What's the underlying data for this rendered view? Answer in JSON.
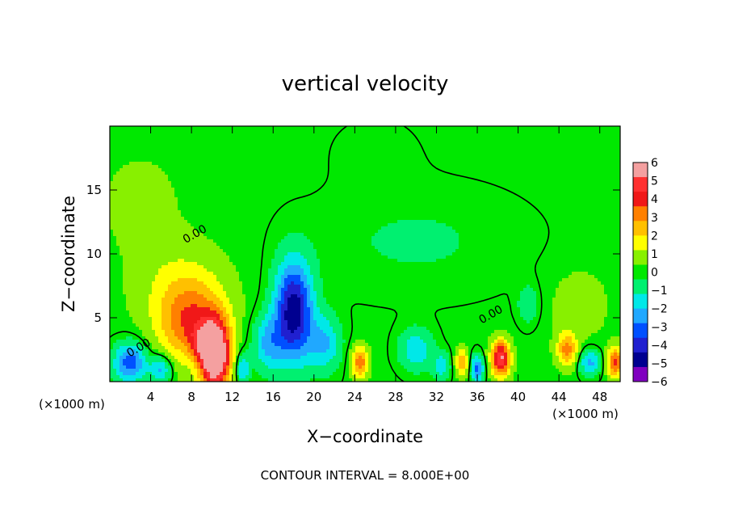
{
  "chart_data": {
    "type": "heatmap",
    "title": "vertical velocity",
    "xlabel": "X−coordinate",
    "ylabel": "Z−coordinate",
    "x_unit_left": "(×1000 m)",
    "x_unit_right": "(×1000 m)",
    "footer": "CONTOUR INTERVAL = 8.000E+00",
    "xlim": [
      0,
      50
    ],
    "ylim": [
      0,
      20
    ],
    "x_ticks": [
      {
        "v": 4,
        "label": "4"
      },
      {
        "v": 8,
        "label": "8"
      },
      {
        "v": 12,
        "label": "12"
      },
      {
        "v": 16,
        "label": "16"
      },
      {
        "v": 20,
        "label": "20"
      },
      {
        "v": 24,
        "label": "24"
      },
      {
        "v": 28,
        "label": "28"
      },
      {
        "v": 32,
        "label": "32"
      },
      {
        "v": 36,
        "label": "36"
      },
      {
        "v": 40,
        "label": "40"
      },
      {
        "v": 44,
        "label": "44"
      },
      {
        "v": 48,
        "label": "48"
      }
    ],
    "y_ticks": [
      {
        "v": 5,
        "label": "5"
      },
      {
        "v": 10,
        "label": "10"
      },
      {
        "v": 15,
        "label": "15"
      }
    ],
    "colorbar": {
      "levels": [
        6,
        5,
        4,
        3,
        2,
        1,
        0,
        -1,
        -2,
        -3,
        -4,
        -5,
        -6
      ],
      "labels": [
        "6",
        "5",
        "4",
        "3",
        "2",
        "1",
        "0",
        "−1",
        "−2",
        "−3",
        "−4",
        "−5",
        "−6"
      ],
      "colors": [
        "#f4a0a0",
        "#ff3030",
        "#f01818",
        "#ff8000",
        "#ffc000",
        "#ffff00",
        "#88f000",
        "#00e800",
        "#00f070",
        "#00e8e8",
        "#20a8ff",
        "#0050ff",
        "#2020d0",
        "#000090",
        "#8000c0"
      ]
    },
    "background_value": 0.1,
    "features": [
      {
        "x": 10.3,
        "z": 2.0,
        "sx": 1.4,
        "sz": 2.6,
        "w": 7.5
      },
      {
        "x": 8.0,
        "z": 4.5,
        "sx": 3.2,
        "sz": 3.0,
        "w": 3.2
      },
      {
        "x": 7.0,
        "z": 7.5,
        "sx": 4.5,
        "sz": 3.5,
        "w": 1.2
      },
      {
        "x": 9.0,
        "z": 3.0,
        "sx": 1.2,
        "sz": 1.2,
        "w": 1.5
      },
      {
        "x": 2.0,
        "z": 1.5,
        "sx": 1.6,
        "sz": 1.5,
        "w": -3.5
      },
      {
        "x": 5.0,
        "z": 1.0,
        "sx": 1.0,
        "sz": 1.0,
        "w": -2.5
      },
      {
        "x": 13.0,
        "z": 1.0,
        "sx": 0.6,
        "sz": 1.2,
        "w": -2.5
      },
      {
        "x": 18.0,
        "z": 5.5,
        "sx": 1.8,
        "sz": 3.8,
        "w": -5.2
      },
      {
        "x": 15.5,
        "z": 3.0,
        "sx": 1.5,
        "sz": 2.2,
        "w": -2.2
      },
      {
        "x": 21.0,
        "z": 3.0,
        "sx": 1.6,
        "sz": 2.2,
        "w": -2.2
      },
      {
        "x": 24.5,
        "z": 1.5,
        "sx": 0.8,
        "sz": 1.2,
        "w": 3.5
      },
      {
        "x": 30.0,
        "z": 2.5,
        "sx": 1.6,
        "sz": 1.6,
        "w": -2.0
      },
      {
        "x": 32.5,
        "z": 1.2,
        "sx": 0.8,
        "sz": 1.0,
        "w": -2.0
      },
      {
        "x": 34.5,
        "z": 1.5,
        "sx": 0.6,
        "sz": 1.0,
        "w": 3.0
      },
      {
        "x": 36.0,
        "z": 1.0,
        "sx": 0.6,
        "sz": 1.0,
        "w": -3.5
      },
      {
        "x": 38.3,
        "z": 1.8,
        "sx": 0.9,
        "sz": 1.4,
        "w": 5.5
      },
      {
        "x": 41.0,
        "z": 6.0,
        "sx": 1.0,
        "sz": 1.5,
        "w": -1.2
      },
      {
        "x": 44.8,
        "z": 2.5,
        "sx": 1.0,
        "sz": 1.3,
        "w": 3.0
      },
      {
        "x": 47.0,
        "z": 1.5,
        "sx": 1.0,
        "sz": 1.0,
        "w": -2.5
      },
      {
        "x": 49.5,
        "z": 1.5,
        "sx": 0.7,
        "sz": 1.2,
        "w": 4.0
      },
      {
        "x": 46.0,
        "z": 6.0,
        "sx": 3.0,
        "sz": 3.0,
        "w": 0.7
      },
      {
        "x": 3.0,
        "z": 14.0,
        "sx": 4.0,
        "sz": 4.0,
        "w": 0.6
      },
      {
        "x": 30.0,
        "z": 11.0,
        "sx": 10.0,
        "sz": 4.0,
        "w": -0.6
      },
      {
        "x": 26.0,
        "z": 18.0,
        "sx": 4.0,
        "sz": 2.5,
        "w": -0.3
      }
    ],
    "contour_labels": [
      {
        "x": 3.0,
        "z": 2.4,
        "text": "0.00"
      },
      {
        "x": 8.5,
        "z": 11.3,
        "text": "0.00"
      },
      {
        "x": 37.5,
        "z": 5.0,
        "text": "0.00"
      }
    ],
    "grid": false,
    "legend_position": "right"
  }
}
